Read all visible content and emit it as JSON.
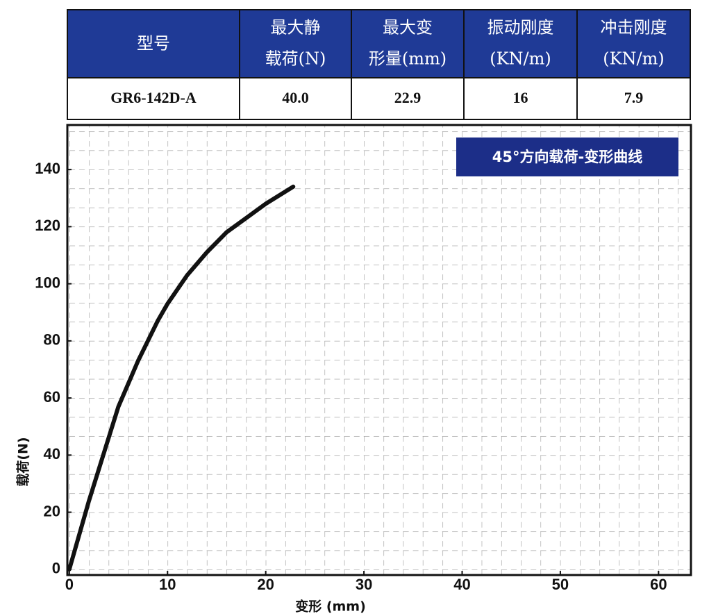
{
  "table": {
    "header": [
      [
        "型号"
      ],
      [
        "最大静",
        "载荷(N)"
      ],
      [
        "最大变",
        "形量(mm)"
      ],
      [
        "振动刚度",
        "(KN/m)"
      ],
      [
        "冲击刚度",
        "(KN/m)"
      ]
    ],
    "rows": [
      [
        "GR6-142D-A",
        "40.0",
        "22.9",
        "16",
        "7.9"
      ]
    ]
  },
  "chart_data": {
    "type": "line",
    "title": "45°方向载荷-变形曲线",
    "x_label": "变形 (mm)",
    "y_label": "载荷(N)",
    "x": [
      0,
      1,
      2,
      3,
      4,
      5,
      6,
      7,
      8,
      9,
      10,
      12,
      14,
      16,
      18,
      20,
      22.8
    ],
    "series": [
      {
        "name": "载荷",
        "color": "#111111",
        "values": [
          0,
          12,
          24,
          35,
          46,
          57,
          65,
          73,
          80,
          87,
          93,
          103,
          111,
          118,
          123,
          128,
          134
        ]
      }
    ],
    "xlim": [
      -0.2,
      63.3
    ],
    "ylim": [
      -2,
      155.6
    ],
    "xticks": [
      0,
      10,
      20,
      30,
      40,
      50,
      60
    ],
    "yticks": [
      0,
      20,
      40,
      60,
      80,
      100,
      120,
      140
    ],
    "grid": true
  }
}
